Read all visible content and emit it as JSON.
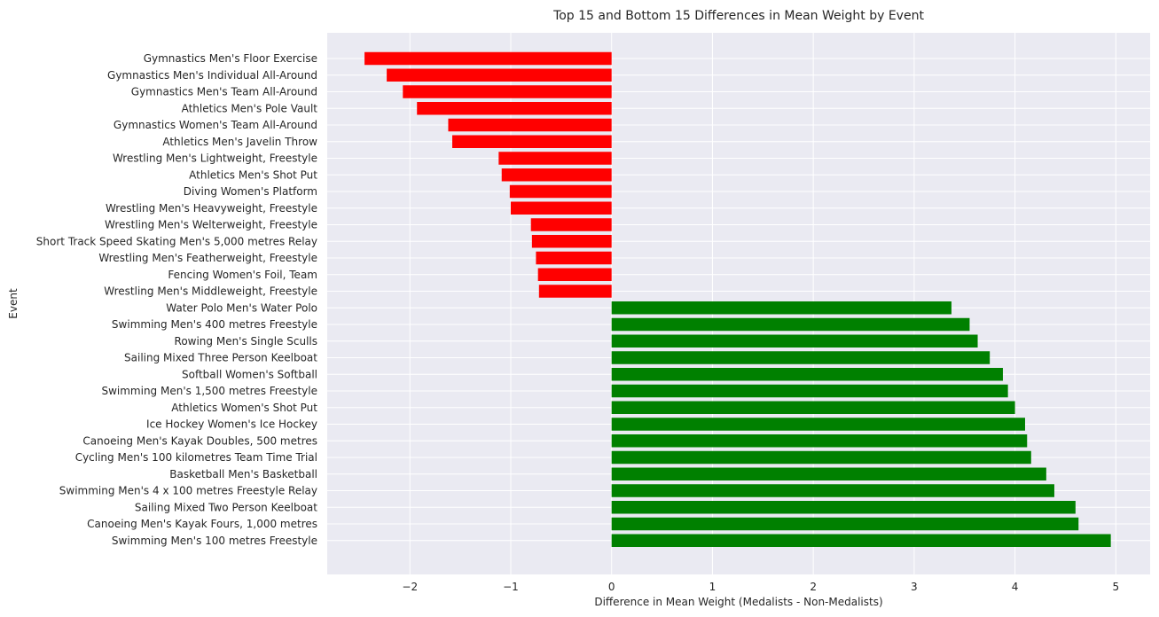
{
  "chart_data": {
    "type": "bar",
    "orientation": "horizontal",
    "title": "Top 15 and Bottom 15 Differences in Mean Weight by Event",
    "xlabel": "Difference in Mean Weight (Medalists - Non-Medalists)",
    "ylabel": "Event",
    "xlim": [
      -2.82,
      5.34
    ],
    "xticks": [
      -2,
      -1,
      0,
      1,
      2,
      3,
      4,
      5
    ],
    "xtick_labels": [
      "−2",
      "−1",
      "0",
      "1",
      "2",
      "3",
      "4",
      "5"
    ],
    "grid": true,
    "colors": {
      "positive": "#008000",
      "negative": "#ff0000",
      "background": "#eaeaf2",
      "grid": "#ffffff"
    },
    "categories": [
      "Gymnastics Men's Floor Exercise",
      "Gymnastics Men's Individual All-Around",
      "Gymnastics Men's Team All-Around",
      "Athletics Men's Pole Vault",
      "Gymnastics Women's Team All-Around",
      "Athletics Men's Javelin Throw",
      "Wrestling Men's Lightweight, Freestyle",
      "Athletics Men's Shot Put",
      "Diving Women's Platform",
      "Wrestling Men's Heavyweight, Freestyle",
      "Wrestling Men's Welterweight, Freestyle",
      "Short Track Speed Skating Men's 5,000 metres Relay",
      "Wrestling Men's Featherweight, Freestyle",
      "Fencing Women's Foil, Team",
      "Wrestling Men's Middleweight, Freestyle",
      "Water Polo Men's Water Polo",
      "Swimming Men's 400 metres Freestyle",
      "Rowing Men's Single Sculls",
      "Sailing Mixed Three Person Keelboat",
      "Softball Women's Softball",
      "Swimming Men's 1,500 metres Freestyle",
      "Athletics Women's Shot Put",
      "Ice Hockey Women's Ice Hockey",
      "Canoeing Men's Kayak Doubles, 500 metres",
      "Cycling Men's 100 kilometres Team Time Trial",
      "Basketball Men's Basketball",
      "Swimming Men's 4 x 100 metres Freestyle Relay",
      "Sailing Mixed Two Person Keelboat",
      "Canoeing Men's Kayak Fours, 1,000 metres",
      "Swimming Men's 100 metres Freestyle"
    ],
    "values": [
      -2.45,
      -2.23,
      -2.07,
      -1.93,
      -1.62,
      -1.58,
      -1.12,
      -1.09,
      -1.01,
      -1.0,
      -0.8,
      -0.79,
      -0.75,
      -0.73,
      -0.72,
      3.37,
      3.55,
      3.63,
      3.75,
      3.88,
      3.93,
      4.0,
      4.1,
      4.12,
      4.16,
      4.31,
      4.39,
      4.6,
      4.63,
      4.95
    ]
  }
}
